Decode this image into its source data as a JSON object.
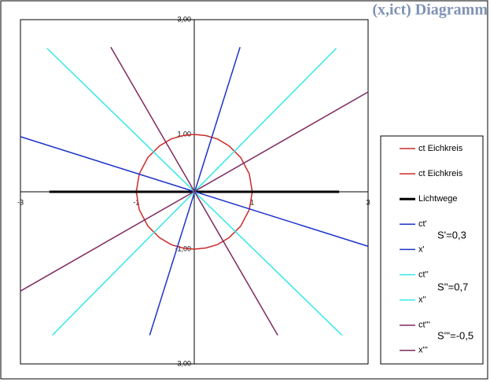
{
  "chart_data": {
    "type": "line",
    "title": "(x,ict) Diagramm",
    "xlim": [
      -3,
      3
    ],
    "ylim": [
      -3,
      3
    ],
    "xticks": [
      -3,
      -1,
      1,
      3
    ],
    "yticks": [
      {
        "value": 3,
        "label": "3,00"
      },
      {
        "value": 1,
        "label": "1,00"
      },
      {
        "value": -1,
        "label": "-1,00"
      },
      {
        "value": -3,
        "label": "-3,00"
      }
    ],
    "legend": "right",
    "series": [
      {
        "name": "ct Eichkreis",
        "color": "#cc2a2a",
        "x": [
          -1,
          -0.95,
          -0.8,
          -0.6,
          -0.4,
          -0.2,
          0,
          0.2,
          0.4,
          0.6,
          0.8,
          0.95,
          1
        ],
        "y": [
          0,
          0.31,
          0.6,
          0.8,
          0.92,
          0.98,
          1,
          0.98,
          0.92,
          0.8,
          0.6,
          0.31,
          0
        ]
      },
      {
        "name": "ct Eichkreis",
        "color": "#cc2a2a",
        "x": [
          -1,
          -0.95,
          -0.8,
          -0.6,
          -0.4,
          -0.2,
          0,
          0.2,
          0.4,
          0.6,
          0.8,
          0.95,
          1
        ],
        "y": [
          0,
          -0.31,
          -0.6,
          -0.8,
          -0.92,
          -0.98,
          -1,
          -0.98,
          -0.92,
          -0.8,
          -0.6,
          -0.31,
          0
        ]
      },
      {
        "name": "Lichtwege",
        "color": "#000000",
        "width": 3,
        "x": [
          -2.5,
          2.5
        ],
        "y": [
          0,
          0
        ]
      },
      {
        "name": "ct'",
        "color": "#1e34c8",
        "x": [
          -0.77,
          0.79
        ],
        "y": [
          -2.5,
          2.52
        ]
      },
      {
        "name": "x'",
        "color": "#1e34c8",
        "x": [
          -3,
          3
        ],
        "y": [
          0.96,
          -0.95
        ]
      },
      {
        "name": "ct''",
        "color": "#33e8e8",
        "x": [
          -2.54,
          2.55
        ],
        "y": [
          2.5,
          -2.5
        ]
      },
      {
        "name": "x''",
        "color": "#33e8e8",
        "x": [
          -2.45,
          2.45
        ],
        "y": [
          -2.5,
          2.5
        ]
      },
      {
        "name": "ct'''",
        "color": "#7f2a5e",
        "x": [
          -1.44,
          1.44
        ],
        "y": [
          2.52,
          -2.5
        ]
      },
      {
        "name": "x'''",
        "color": "#7f2a5e",
        "x": [
          -3,
          3
        ],
        "y": [
          -1.73,
          1.74
        ]
      }
    ],
    "annotations": [
      "S'=0,3",
      "S''=0,7",
      "S'''=-0,5"
    ]
  }
}
